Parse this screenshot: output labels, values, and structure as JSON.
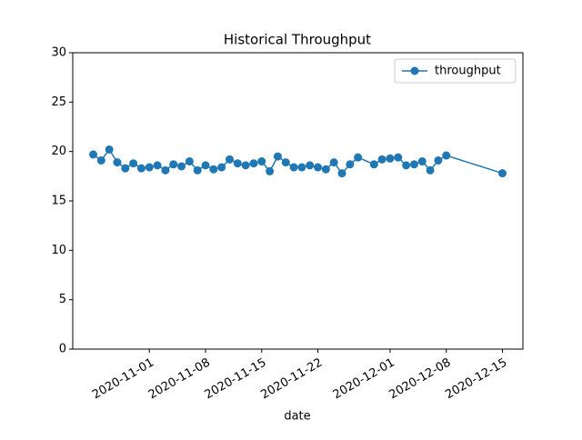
{
  "chart_data": {
    "type": "line",
    "title": "Historical Throughput",
    "x_label": "date",
    "x": [
      "2020-10-25",
      "2020-10-26",
      "2020-10-27",
      "2020-10-28",
      "2020-10-29",
      "2020-10-30",
      "2020-10-31",
      "2020-11-01",
      "2020-11-02",
      "2020-11-03",
      "2020-11-04",
      "2020-11-05",
      "2020-11-06",
      "2020-11-07",
      "2020-11-08",
      "2020-11-09",
      "2020-11-10",
      "2020-11-11",
      "2020-11-12",
      "2020-11-13",
      "2020-11-14",
      "2020-11-15",
      "2020-11-16",
      "2020-11-17",
      "2020-11-18",
      "2020-11-19",
      "2020-11-20",
      "2020-11-21",
      "2020-11-22",
      "2020-11-23",
      "2020-11-24",
      "2020-11-25",
      "2020-11-26",
      "2020-11-27",
      "2020-11-29",
      "2020-11-30",
      "2020-12-01",
      "2020-12-02",
      "2020-12-03",
      "2020-12-04",
      "2020-12-05",
      "2020-12-06",
      "2020-12-07",
      "2020-12-08",
      "2020-12-15"
    ],
    "series": [
      {
        "name": "throughput",
        "color": "#1f77b4",
        "values": [
          19.7,
          19.1,
          20.2,
          18.9,
          18.3,
          18.8,
          18.3,
          18.4,
          18.6,
          18.1,
          18.7,
          18.5,
          19.0,
          18.1,
          18.6,
          18.2,
          18.4,
          19.2,
          18.8,
          18.6,
          18.8,
          19.0,
          18.0,
          19.5,
          18.9,
          18.4,
          18.4,
          18.6,
          18.4,
          18.2,
          18.9,
          17.8,
          18.7,
          19.4,
          18.7,
          19.2,
          19.3,
          19.4,
          18.6,
          18.7,
          19.0,
          18.1,
          19.1,
          19.6,
          17.8
        ]
      }
    ],
    "xlim": [
      "2020-10-22T10:48:00Z",
      "2020-12-17T13:12:00Z"
    ],
    "xticks": [
      "2020-11-01",
      "2020-11-08",
      "2020-11-15",
      "2020-11-22",
      "2020-12-01",
      "2020-12-08",
      "2020-12-15"
    ],
    "ylim": [
      0,
      30
    ],
    "yticks": [
      0,
      5,
      10,
      15,
      20,
      25,
      30
    ],
    "legend": "upper right"
  }
}
